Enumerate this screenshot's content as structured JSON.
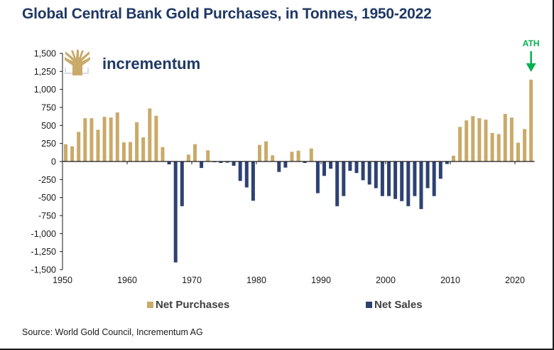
{
  "header": {
    "title": "Global Central Bank Gold Purchases, in Tonnes, 1950-2022"
  },
  "logo": {
    "text": "incrementum",
    "icon": "tree-icon"
  },
  "annotation": {
    "label": "ATH",
    "icon": "down-arrow-icon",
    "target_year": 2022,
    "color": "#00b050"
  },
  "colors": {
    "purchases": "#c9aa6a",
    "sales": "#2e4272",
    "title": "#1f3864",
    "logo_text": "#1f3864",
    "logo_icon": "#c9aa6a",
    "axis": "#1a1a1a"
  },
  "legend": {
    "purchases_label": "Net Purchases",
    "sales_label": "Net Sales"
  },
  "source": "Source: World Gold Council, Incrementum AG",
  "chart_data": {
    "type": "bar",
    "title": "Global Central Bank Gold Purchases, in Tonnes, 1950-2022",
    "xlabel": "",
    "ylabel": "",
    "ylim": [
      -1500,
      1500
    ],
    "xlim": [
      1950,
      2022
    ],
    "yticks": [
      1500,
      1250,
      1000,
      750,
      500,
      250,
      0,
      -250,
      -500,
      -750,
      -1000,
      -1250,
      -1500
    ],
    "ytick_labels": [
      "1,500",
      "1,250",
      "1,000",
      "750",
      "500",
      "250",
      "0",
      "-250",
      "-500",
      "-750",
      "-1,000",
      "-1,250",
      "-1,500"
    ],
    "xticks": [
      1950,
      1960,
      1970,
      1980,
      1990,
      2000,
      2010,
      2020
    ],
    "xtick_labels": [
      "1950",
      "1960",
      "1970",
      "1980",
      "1990",
      "2000",
      "2010",
      "2020"
    ],
    "grid": false,
    "legend_position": "bottom",
    "series": [
      {
        "name": "Net Purchases",
        "rule": "value > 0"
      },
      {
        "name": "Net Sales",
        "rule": "value < 0"
      }
    ],
    "x": [
      1950,
      1951,
      1952,
      1953,
      1954,
      1955,
      1956,
      1957,
      1958,
      1959,
      1960,
      1961,
      1962,
      1963,
      1964,
      1965,
      1966,
      1967,
      1968,
      1969,
      1970,
      1971,
      1972,
      1973,
      1974,
      1975,
      1976,
      1977,
      1978,
      1979,
      1980,
      1981,
      1982,
      1983,
      1984,
      1985,
      1986,
      1987,
      1988,
      1989,
      1990,
      1991,
      1992,
      1993,
      1994,
      1995,
      1996,
      1997,
      1998,
      1999,
      2000,
      2001,
      2002,
      2003,
      2004,
      2005,
      2006,
      2007,
      2008,
      2009,
      2010,
      2011,
      2012,
      2013,
      2014,
      2015,
      2016,
      2017,
      2018,
      2019,
      2020,
      2021,
      2022
    ],
    "values": [
      240,
      210,
      410,
      600,
      600,
      440,
      620,
      610,
      680,
      265,
      270,
      545,
      335,
      735,
      635,
      200,
      -40,
      -1400,
      -620,
      95,
      240,
      -90,
      155,
      -10,
      -20,
      -15,
      -60,
      -270,
      -360,
      -545,
      230,
      280,
      85,
      -145,
      -85,
      135,
      150,
      -20,
      180,
      -440,
      -200,
      -100,
      -620,
      -480,
      -130,
      -160,
      -260,
      -320,
      -370,
      -480,
      -480,
      -520,
      -550,
      -620,
      -480,
      -660,
      -370,
      -480,
      -240,
      -35,
      80,
      480,
      570,
      630,
      600,
      580,
      395,
      380,
      660,
      610,
      260,
      450,
      1135
    ]
  }
}
